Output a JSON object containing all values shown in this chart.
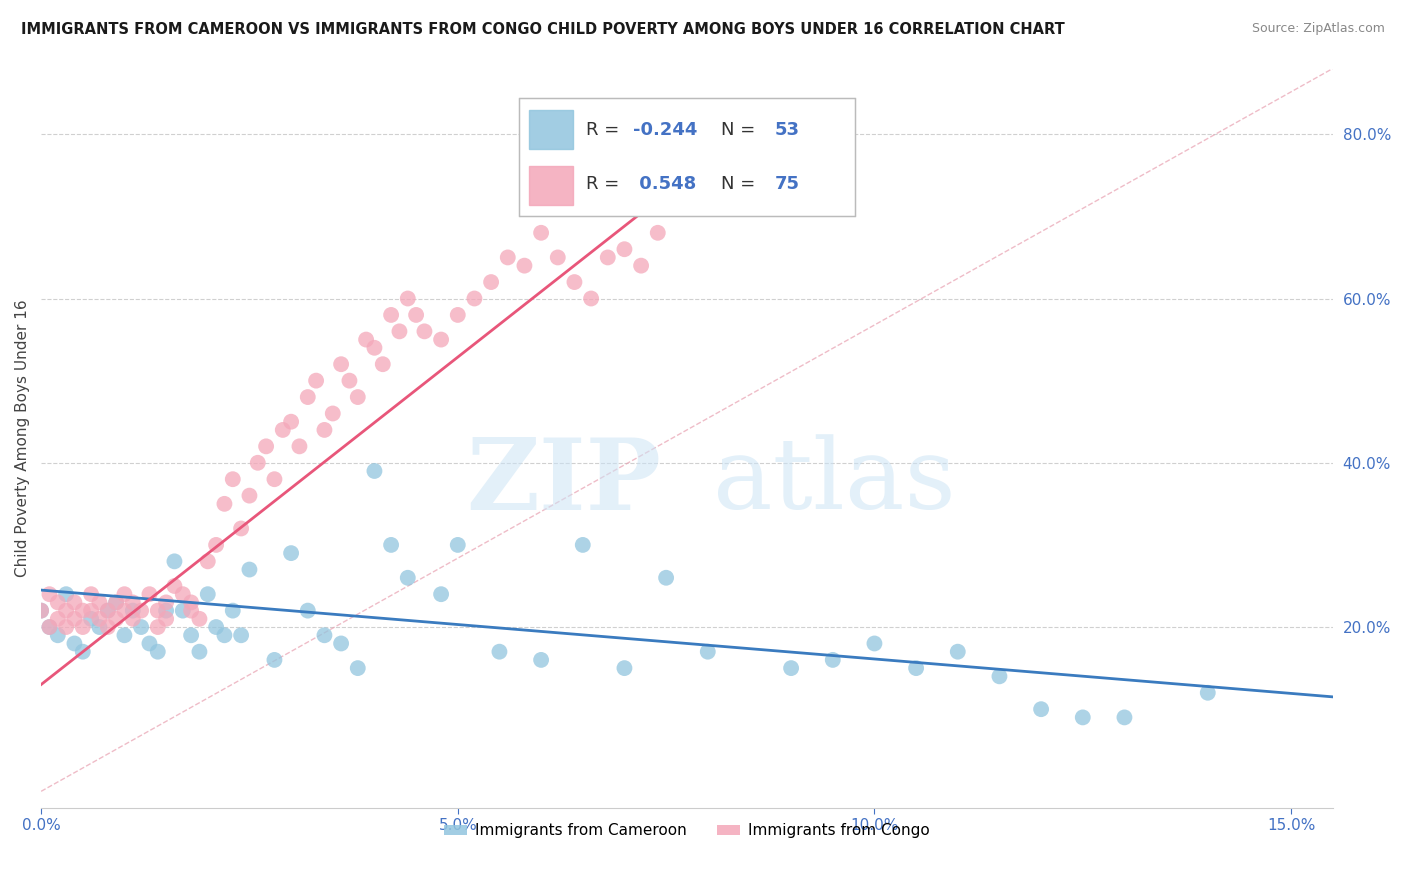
{
  "title": "IMMIGRANTS FROM CAMEROON VS IMMIGRANTS FROM CONGO CHILD POVERTY AMONG BOYS UNDER 16 CORRELATION CHART",
  "source": "Source: ZipAtlas.com",
  "ylabel": "Child Poverty Among Boys Under 16",
  "xlim": [
    0.0,
    0.155
  ],
  "ylim": [
    -0.02,
    0.88
  ],
  "xticks": [
    0.0,
    0.05,
    0.1,
    0.15
  ],
  "xticklabels": [
    "0.0%",
    "5.0%",
    "10.0%",
    "15.0%"
  ],
  "yticks_right": [
    0.2,
    0.4,
    0.6,
    0.8
  ],
  "ytick_right_labels": [
    "20.0%",
    "40.0%",
    "60.0%",
    "80.0%"
  ],
  "cameroon_color": "#92c5de",
  "congo_color": "#f4a7b9",
  "cameroon_R": -0.244,
  "cameroon_N": 53,
  "congo_R": 0.548,
  "congo_N": 75,
  "cameroon_line_color": "#3a7bbf",
  "congo_line_color": "#e8567a",
  "watermark_zip": "ZIP",
  "watermark_atlas": "atlas",
  "background_color": "#ffffff",
  "grid_color": "#d0d0d0",
  "legend_label_cameroon": "Immigrants from Cameroon",
  "legend_label_congo": "Immigrants from Congo",
  "r_label_color": "#333333",
  "r_value_color": "#4472c4",
  "n_label_color": "#333333",
  "n_value_color": "#4472c4",
  "cameroon_scatter_x": [
    0.0,
    0.001,
    0.002,
    0.003,
    0.004,
    0.005,
    0.006,
    0.007,
    0.008,
    0.009,
    0.01,
    0.011,
    0.012,
    0.013,
    0.014,
    0.015,
    0.016,
    0.017,
    0.018,
    0.019,
    0.02,
    0.021,
    0.022,
    0.023,
    0.024,
    0.025,
    0.028,
    0.03,
    0.032,
    0.034,
    0.036,
    0.038,
    0.04,
    0.042,
    0.044,
    0.048,
    0.05,
    0.055,
    0.06,
    0.065,
    0.07,
    0.075,
    0.08,
    0.09,
    0.095,
    0.1,
    0.105,
    0.11,
    0.115,
    0.12,
    0.125,
    0.13,
    0.14
  ],
  "cameroon_scatter_y": [
    0.22,
    0.2,
    0.19,
    0.24,
    0.18,
    0.17,
    0.21,
    0.2,
    0.22,
    0.23,
    0.19,
    0.22,
    0.2,
    0.18,
    0.17,
    0.22,
    0.28,
    0.22,
    0.19,
    0.17,
    0.24,
    0.2,
    0.19,
    0.22,
    0.19,
    0.27,
    0.16,
    0.29,
    0.22,
    0.19,
    0.18,
    0.15,
    0.39,
    0.3,
    0.26,
    0.24,
    0.3,
    0.17,
    0.16,
    0.3,
    0.15,
    0.26,
    0.17,
    0.15,
    0.16,
    0.18,
    0.15,
    0.17,
    0.14,
    0.1,
    0.09,
    0.09,
    0.12
  ],
  "congo_scatter_x": [
    0.0,
    0.001,
    0.001,
    0.002,
    0.002,
    0.003,
    0.003,
    0.004,
    0.004,
    0.005,
    0.005,
    0.006,
    0.006,
    0.007,
    0.007,
    0.008,
    0.008,
    0.009,
    0.009,
    0.01,
    0.01,
    0.011,
    0.011,
    0.012,
    0.013,
    0.014,
    0.014,
    0.015,
    0.015,
    0.016,
    0.017,
    0.018,
    0.018,
    0.019,
    0.02,
    0.021,
    0.022,
    0.023,
    0.024,
    0.025,
    0.026,
    0.027,
    0.028,
    0.029,
    0.03,
    0.031,
    0.032,
    0.033,
    0.034,
    0.035,
    0.036,
    0.037,
    0.038,
    0.039,
    0.04,
    0.041,
    0.042,
    0.043,
    0.044,
    0.045,
    0.046,
    0.048,
    0.05,
    0.052,
    0.054,
    0.056,
    0.058,
    0.06,
    0.062,
    0.064,
    0.066,
    0.068,
    0.07,
    0.072,
    0.074
  ],
  "congo_scatter_y": [
    0.22,
    0.24,
    0.2,
    0.23,
    0.21,
    0.22,
    0.2,
    0.23,
    0.21,
    0.22,
    0.2,
    0.24,
    0.22,
    0.23,
    0.21,
    0.22,
    0.2,
    0.23,
    0.21,
    0.24,
    0.22,
    0.23,
    0.21,
    0.22,
    0.24,
    0.22,
    0.2,
    0.23,
    0.21,
    0.25,
    0.24,
    0.22,
    0.23,
    0.21,
    0.28,
    0.3,
    0.35,
    0.38,
    0.32,
    0.36,
    0.4,
    0.42,
    0.38,
    0.44,
    0.45,
    0.42,
    0.48,
    0.5,
    0.44,
    0.46,
    0.52,
    0.5,
    0.48,
    0.55,
    0.54,
    0.52,
    0.58,
    0.56,
    0.6,
    0.58,
    0.56,
    0.55,
    0.58,
    0.6,
    0.62,
    0.65,
    0.64,
    0.68,
    0.65,
    0.62,
    0.6,
    0.65,
    0.66,
    0.64,
    0.68
  ],
  "cameroon_trend_x": [
    0.0,
    0.155
  ],
  "cameroon_trend_y": [
    0.245,
    0.115
  ],
  "congo_trend_x": [
    0.0,
    0.074
  ],
  "congo_trend_y": [
    0.13,
    0.72
  ],
  "dashed_line_x": [
    0.0,
    0.155
  ],
  "dashed_line_y": [
    0.0,
    0.88
  ]
}
